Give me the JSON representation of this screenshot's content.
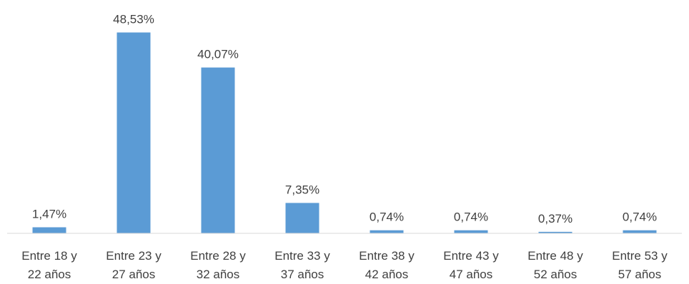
{
  "chart_data": {
    "type": "bar",
    "title": "",
    "xlabel": "",
    "ylabel": "",
    "ylim": [
      0,
      55
    ],
    "grid": false,
    "legend": "none",
    "bar_color": "#5B9BD5",
    "categories": [
      [
        "Entre 18 y",
        "22 años"
      ],
      [
        "Entre 23 y",
        "27 años"
      ],
      [
        "Entre 28 y",
        "32 años"
      ],
      [
        "Entre 33 y",
        "37 años"
      ],
      [
        "Entre 38 y",
        "42 años"
      ],
      [
        "Entre 43 y",
        "47 años"
      ],
      [
        "Entre 48 y",
        "52 años"
      ],
      [
        "Entre 53 y",
        "57 años"
      ]
    ],
    "values": [
      1.47,
      48.53,
      40.07,
      7.35,
      0.74,
      0.74,
      0.37,
      0.74
    ],
    "data_labels": [
      "1,47%",
      "48,53%",
      "40,07%",
      "7,35%",
      "0,74%",
      "0,74%",
      "0,37%",
      "0,74%"
    ]
  }
}
